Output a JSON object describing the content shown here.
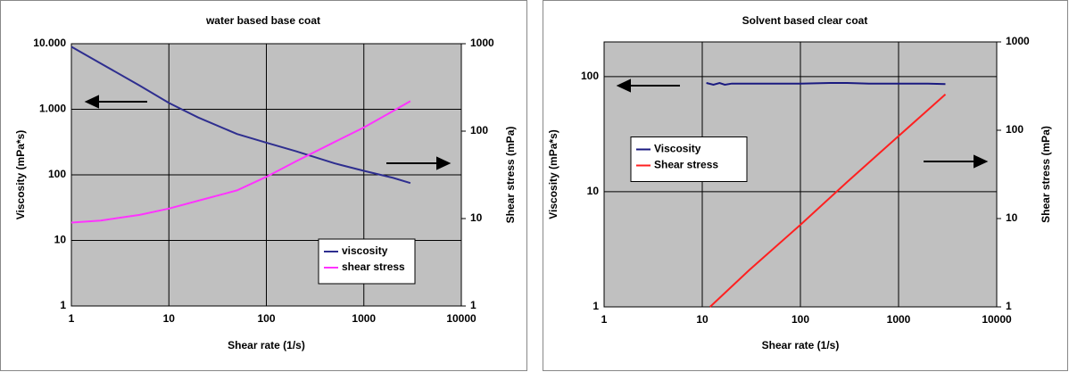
{
  "chart_data": [
    {
      "type": "line",
      "title": "water based base coat",
      "x_label": "Shear rate (1/s)",
      "y_label": "Viscosity (mPa*s)",
      "y2_label": "Shear stress (mPa)",
      "xscale": "log",
      "yscale": "log",
      "y2scale": "log",
      "grid": true,
      "legend": "lower right",
      "xlim": [
        1,
        10000
      ],
      "xticks": [
        1,
        10,
        100,
        1000,
        10000
      ],
      "ylim": [
        1,
        10000
      ],
      "yticks": [
        1,
        10,
        100,
        {
          "value": 1000,
          "label": "1.000"
        },
        {
          "value": 10000,
          "label": "10.000"
        }
      ],
      "y2lim": [
        1,
        1000
      ],
      "y2ticks": [
        1,
        10,
        100,
        1000
      ],
      "series": [
        {
          "name": "viscosity",
          "color": "#2e2e8f",
          "x": [
            1,
            2,
            5,
            10,
            20,
            50,
            100,
            200,
            500,
            1000,
            2000,
            3000
          ],
          "values": [
            9000,
            5000,
            2300,
            1250,
            750,
            420,
            310,
            230,
            150,
            115,
            90,
            75
          ]
        },
        {
          "name": "shear stress",
          "color": "#ff33ff",
          "axis": "y2",
          "x": [
            1,
            2,
            5,
            10,
            20,
            50,
            100,
            200,
            500,
            1000,
            2000,
            3000
          ],
          "values": [
            9,
            9.5,
            11,
            13,
            16,
            21,
            30,
            45,
            75,
            110,
            170,
            220
          ]
        }
      ]
    },
    {
      "type": "line",
      "title": "Solvent based clear coat",
      "x_label": "Shear rate (1/s)",
      "y_label": "Viscosity (mPa*s)",
      "y2_label": "Shear stress (mPa)",
      "xscale": "log",
      "yscale": "log",
      "y2scale": "log",
      "grid": true,
      "legend": "center left",
      "xlim": [
        1,
        10000
      ],
      "xticks": [
        1,
        10,
        100,
        1000,
        10000
      ],
      "ylim": [
        1,
        200
      ],
      "yticks": [
        1,
        10,
        100
      ],
      "y2lim": [
        1,
        1000
      ],
      "y2ticks": [
        1,
        10,
        100,
        1000
      ],
      "series": [
        {
          "name": "Viscosity",
          "color": "#1a1a80",
          "x": [
            11,
            13,
            15,
            17,
            20,
            30,
            50,
            100,
            200,
            300,
            500,
            1000,
            2000,
            3000
          ],
          "values": [
            88,
            85,
            88,
            85,
            87,
            87,
            87,
            87,
            88,
            88,
            87,
            87,
            87,
            86
          ]
        },
        {
          "name": "Shear stress",
          "color": "#ff2020",
          "axis": "y2",
          "x": [
            12,
            30,
            100,
            300,
            1000,
            3000
          ],
          "values": [
            1,
            2.6,
            8.5,
            26,
            86,
            255
          ]
        }
      ]
    }
  ]
}
